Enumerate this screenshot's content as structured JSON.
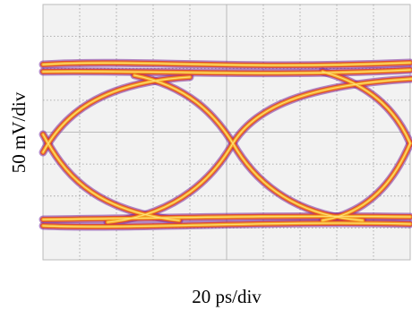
{
  "x_label": "20 ps/div",
  "y_label": "50 mV/div"
}
